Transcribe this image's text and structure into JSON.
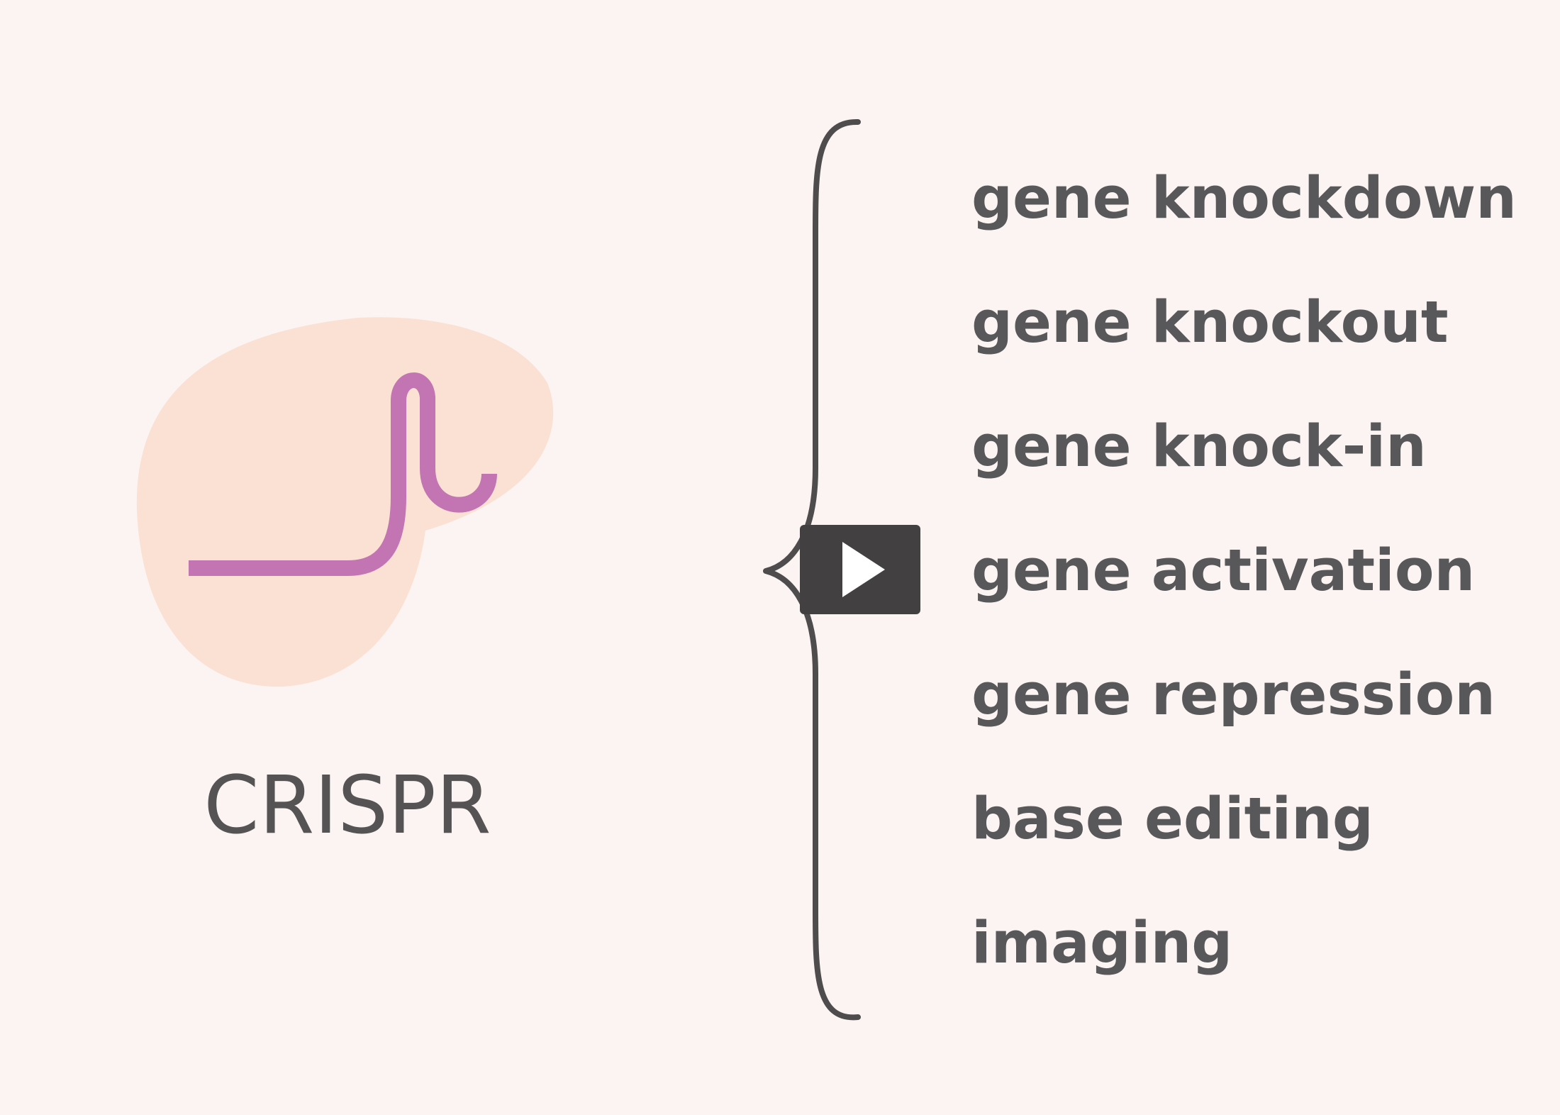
{
  "colors": {
    "background": "#fcf4f3",
    "protein_blob": "#fbe1d3",
    "guide_rna": "#c274b3",
    "brace": "#4e4c4d",
    "text": "#58575a",
    "play_button_bg": "#424041",
    "play_icon": "#ffffff"
  },
  "diagram": {
    "crispr_label": "CRISPR",
    "applications": [
      "gene knockdown",
      "gene knockout",
      "gene knock-in",
      "gene activation",
      "gene repression",
      "base editing",
      "imaging"
    ]
  },
  "player": {
    "play_icon": "play-triangle-icon"
  }
}
